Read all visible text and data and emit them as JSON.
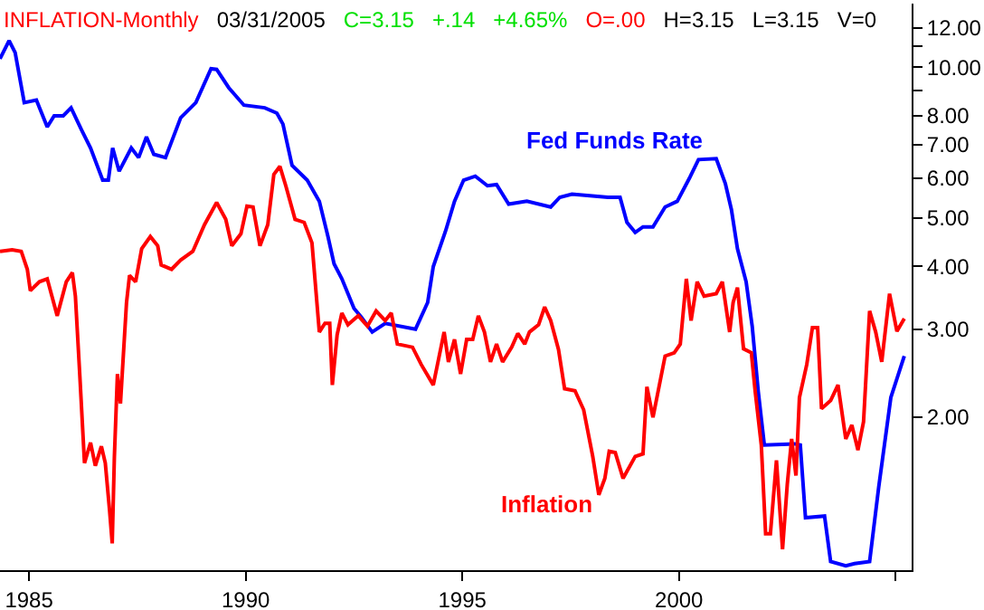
{
  "chart_data": {
    "type": "line",
    "title": "INFLATION-Monthly",
    "annotations": [
      "03/31/2005",
      "C=3.15",
      "+.14",
      "+4.65%",
      "O=.00",
      "H=3.15",
      "L=3.15",
      "V=0"
    ],
    "log": "y",
    "legend": false,
    "marker": "none",
    "line_style": "solid",
    "xlim": [
      1984.33,
      2005.37
    ],
    "xticks": [
      1985,
      1990,
      1995,
      2000,
      {
        "value": 2005,
        "label": null
      }
    ],
    "ylim": [
      0.99,
      13.4
    ],
    "yticks": [
      {
        "value": 2,
        "label": "2.00"
      },
      {
        "value": 3,
        "label": "3.00"
      },
      {
        "value": 4,
        "label": "4.00"
      },
      {
        "value": 5,
        "label": "5.00"
      },
      {
        "value": 6,
        "label": "6.00"
      },
      {
        "value": 7,
        "label": "7.00"
      },
      {
        "value": 8,
        "label": "8.00"
      },
      {
        "value": 9,
        "label": null
      },
      {
        "value": 10,
        "label": "10.00"
      },
      {
        "value": 11,
        "label": null
      },
      {
        "value": 12,
        "label": "12.00"
      }
    ],
    "series": [
      {
        "name": "Fed Funds Rate",
        "color": "#0000ff",
        "x": [
          1984.33,
          1984.54,
          1984.68,
          1984.89,
          1985.17,
          1985.42,
          1985.58,
          1985.79,
          1985.97,
          1986.21,
          1986.42,
          1986.7,
          1986.83,
          1986.93,
          1987.08,
          1987.36,
          1987.53,
          1987.71,
          1987.88,
          1988.15,
          1988.5,
          1988.85,
          1989.2,
          1989.33,
          1989.61,
          1989.96,
          1990.44,
          1990.72,
          1990.86,
          1991.07,
          1991.42,
          1991.7,
          1991.9,
          1992.04,
          1992.22,
          1992.5,
          1992.67,
          1992.92,
          1993.22,
          1993.92,
          1994.2,
          1994.33,
          1994.61,
          1994.82,
          1995.03,
          1995.3,
          1995.58,
          1995.79,
          1996.07,
          1996.49,
          1997.04,
          1997.25,
          1997.53,
          1998.36,
          1998.64,
          1998.8,
          1998.99,
          1999.17,
          1999.4,
          1999.68,
          1999.96,
          2000.24,
          2000.45,
          2000.86,
          2001.07,
          2001.21,
          2001.35,
          2001.55,
          2001.69,
          2001.83,
          2001.97,
          2002.67,
          2002.8,
          2002.92,
          2003.36,
          2003.5,
          2003.85,
          2004.05,
          2004.4,
          2004.61,
          2004.89,
          2005.2
        ],
        "values": [
          10.4,
          11.3,
          10.7,
          8.5,
          8.6,
          7.6,
          8.0,
          8.0,
          8.3,
          7.5,
          6.9,
          5.95,
          5.95,
          6.9,
          6.2,
          6.9,
          6.6,
          7.26,
          6.7,
          6.6,
          7.93,
          8.5,
          9.93,
          9.9,
          9.1,
          8.4,
          8.3,
          8.1,
          7.7,
          6.37,
          5.95,
          5.4,
          4.59,
          4.05,
          3.78,
          3.3,
          3.17,
          2.96,
          3.08,
          3.0,
          3.39,
          4.0,
          4.7,
          5.4,
          5.95,
          6.06,
          5.8,
          5.83,
          5.33,
          5.4,
          5.26,
          5.5,
          5.58,
          5.5,
          5.5,
          4.9,
          4.68,
          4.8,
          4.8,
          5.26,
          5.4,
          6.0,
          6.54,
          6.57,
          5.86,
          5.2,
          4.34,
          3.73,
          3.04,
          2.25,
          1.76,
          1.77,
          1.76,
          1.26,
          1.27,
          1.03,
          1.01,
          1.02,
          1.03,
          1.45,
          2.19,
          2.65
        ]
      },
      {
        "name": "Inflation",
        "color": "#ff0000",
        "x": [
          1984.33,
          1984.61,
          1984.82,
          1984.96,
          1985.03,
          1985.24,
          1985.42,
          1985.65,
          1985.86,
          1986.0,
          1986.07,
          1986.17,
          1986.28,
          1986.42,
          1986.53,
          1986.67,
          1986.76,
          1986.86,
          1986.92,
          1986.97,
          1987.04,
          1987.11,
          1987.25,
          1987.32,
          1987.46,
          1987.6,
          1987.8,
          1987.97,
          1988.05,
          1988.29,
          1988.5,
          1988.78,
          1989.05,
          1989.33,
          1989.54,
          1989.68,
          1989.89,
          1990.03,
          1990.17,
          1990.33,
          1990.51,
          1990.65,
          1990.79,
          1990.93,
          1991.14,
          1991.35,
          1991.53,
          1991.7,
          1991.83,
          1991.94,
          1992.0,
          1992.11,
          1992.22,
          1992.36,
          1992.6,
          1992.81,
          1993.01,
          1993.22,
          1993.36,
          1993.5,
          1993.85,
          1994.05,
          1994.33,
          1994.58,
          1994.68,
          1994.82,
          1994.96,
          1995.1,
          1995.24,
          1995.37,
          1995.51,
          1995.65,
          1995.79,
          1995.93,
          1996.14,
          1996.28,
          1996.44,
          1996.55,
          1996.76,
          1996.9,
          1997.04,
          1997.22,
          1997.36,
          1997.6,
          1997.8,
          1998.01,
          1998.15,
          1998.29,
          1998.39,
          1998.53,
          1998.71,
          1998.99,
          1999.17,
          1999.26,
          1999.4,
          1999.68,
          1999.89,
          2000.03,
          2000.17,
          2000.28,
          2000.42,
          2000.58,
          2000.86,
          2001.0,
          2001.17,
          2001.25,
          2001.35,
          2001.49,
          2001.67,
          2001.76,
          2001.9,
          2002.0,
          2002.11,
          2002.25,
          2002.39,
          2002.5,
          2002.6,
          2002.7,
          2002.78,
          2002.95,
          2003.08,
          2003.2,
          2003.29,
          2003.5,
          2003.67,
          2003.85,
          2003.99,
          2004.13,
          2004.26,
          2004.4,
          2004.54,
          2004.68,
          2004.86,
          2005.03,
          2005.2
        ],
        "values": [
          4.29,
          4.32,
          4.29,
          3.95,
          3.58,
          3.73,
          3.78,
          3.19,
          3.73,
          3.89,
          3.49,
          2.44,
          1.62,
          1.78,
          1.6,
          1.75,
          1.62,
          1.3,
          1.12,
          1.67,
          2.44,
          2.13,
          3.39,
          3.84,
          3.73,
          4.34,
          4.59,
          4.4,
          4.03,
          3.95,
          4.12,
          4.29,
          4.85,
          5.37,
          4.97,
          4.4,
          4.65,
          5.28,
          5.26,
          4.4,
          4.85,
          6.11,
          6.34,
          5.78,
          4.97,
          4.9,
          4.46,
          2.96,
          3.08,
          3.08,
          2.32,
          2.92,
          3.23,
          3.06,
          3.19,
          3.04,
          3.26,
          3.12,
          3.23,
          2.8,
          2.76,
          2.55,
          2.32,
          2.96,
          2.58,
          2.86,
          2.44,
          2.86,
          2.86,
          3.19,
          2.96,
          2.58,
          2.8,
          2.58,
          2.76,
          2.94,
          2.8,
          2.96,
          3.06,
          3.32,
          3.12,
          2.73,
          2.28,
          2.26,
          2.07,
          1.67,
          1.4,
          1.51,
          1.71,
          1.7,
          1.51,
          1.67,
          1.69,
          2.3,
          2.0,
          2.65,
          2.69,
          2.8,
          3.78,
          3.12,
          3.73,
          3.49,
          3.53,
          3.73,
          2.96,
          3.39,
          3.63,
          2.74,
          2.69,
          2.25,
          1.76,
          1.17,
          1.17,
          1.64,
          1.09,
          1.47,
          1.81,
          1.53,
          2.19,
          2.55,
          3.02,
          3.02,
          2.08,
          2.16,
          2.32,
          1.81,
          1.93,
          1.72,
          1.96,
          3.26,
          2.96,
          2.58,
          3.53,
          2.97,
          3.15
        ]
      }
    ]
  }
}
